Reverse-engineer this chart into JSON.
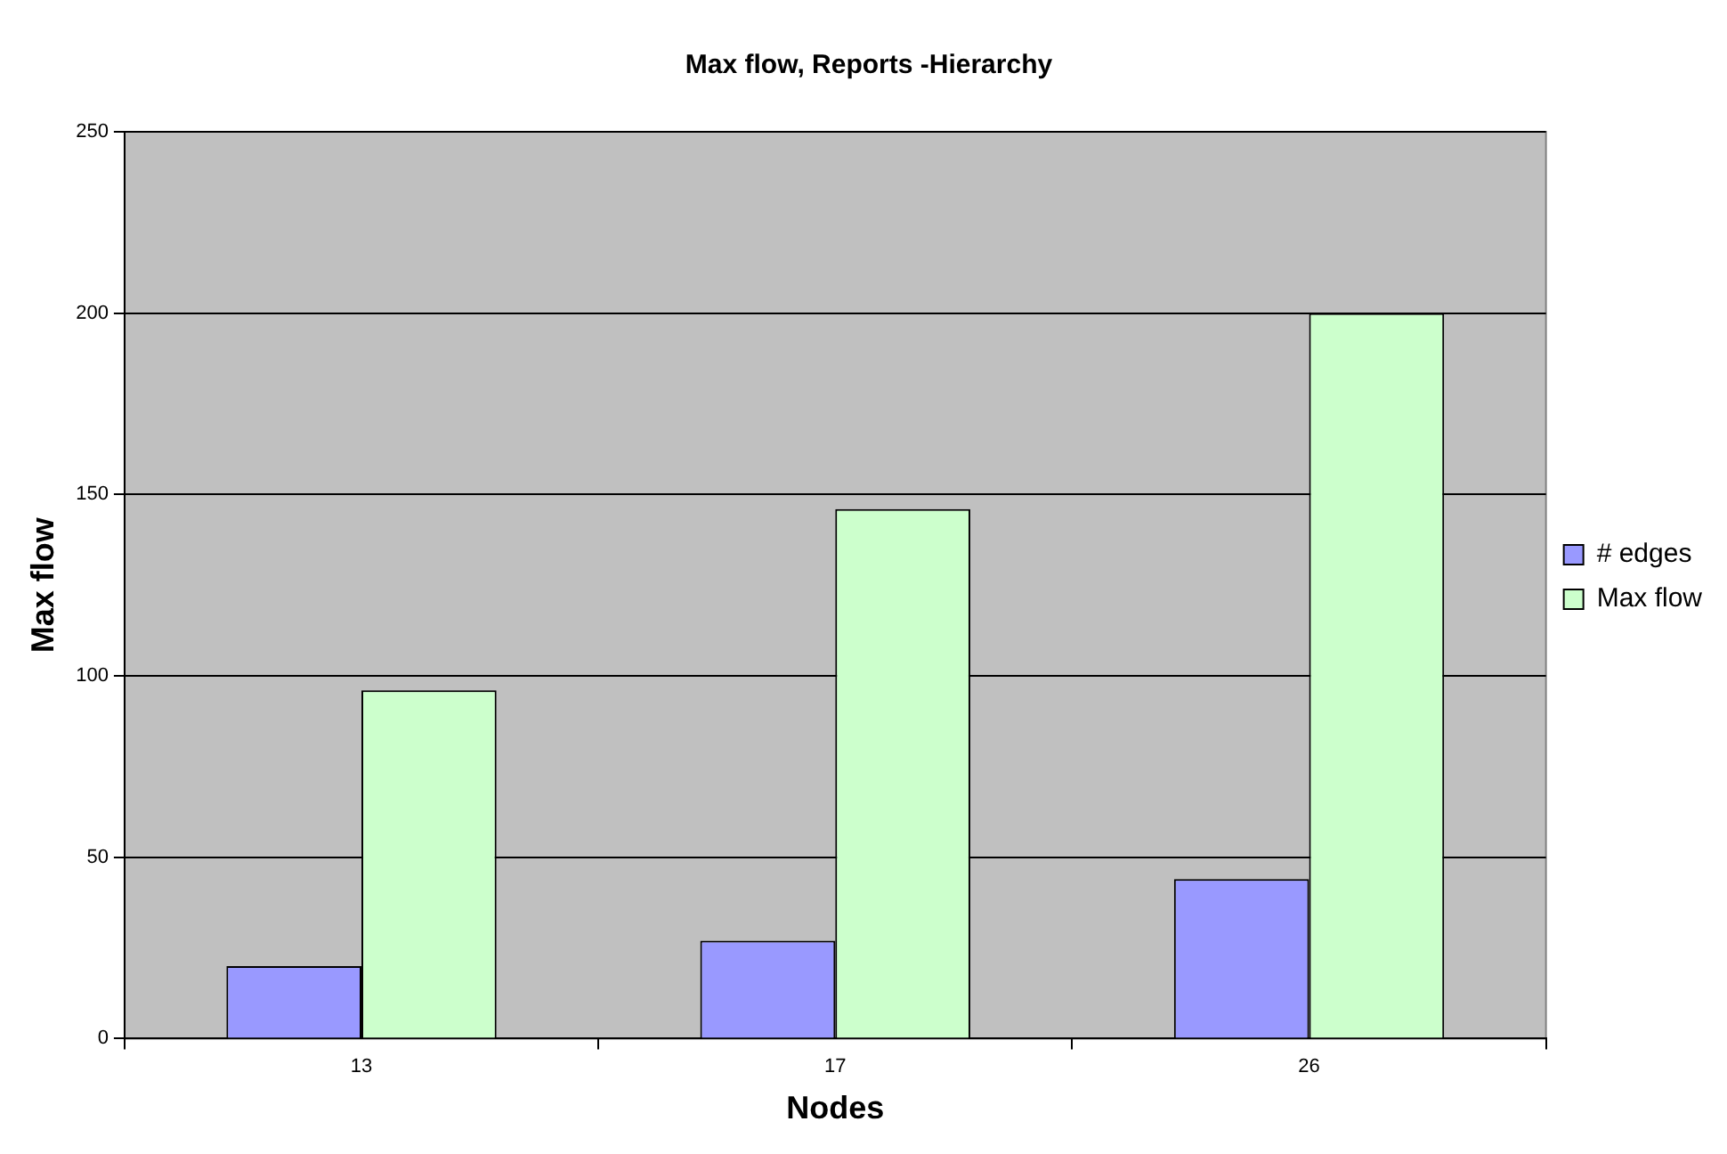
{
  "chart_data": {
    "type": "bar",
    "title": "Max flow, Reports -Hierarchy",
    "xlabel": "Nodes",
    "ylabel": "Max flow",
    "categories": [
      "13",
      "17",
      "26"
    ],
    "series": [
      {
        "name": "# edges",
        "color": "#9999ff",
        "values": [
          20,
          27,
          44
        ]
      },
      {
        "name": "Max flow",
        "color": "#ccffcc",
        "values": [
          96,
          146,
          200
        ]
      }
    ],
    "ylim": [
      0,
      250
    ],
    "yticks": [
      0,
      50,
      100,
      150,
      200,
      250
    ],
    "grid": "y",
    "legend": "right"
  }
}
